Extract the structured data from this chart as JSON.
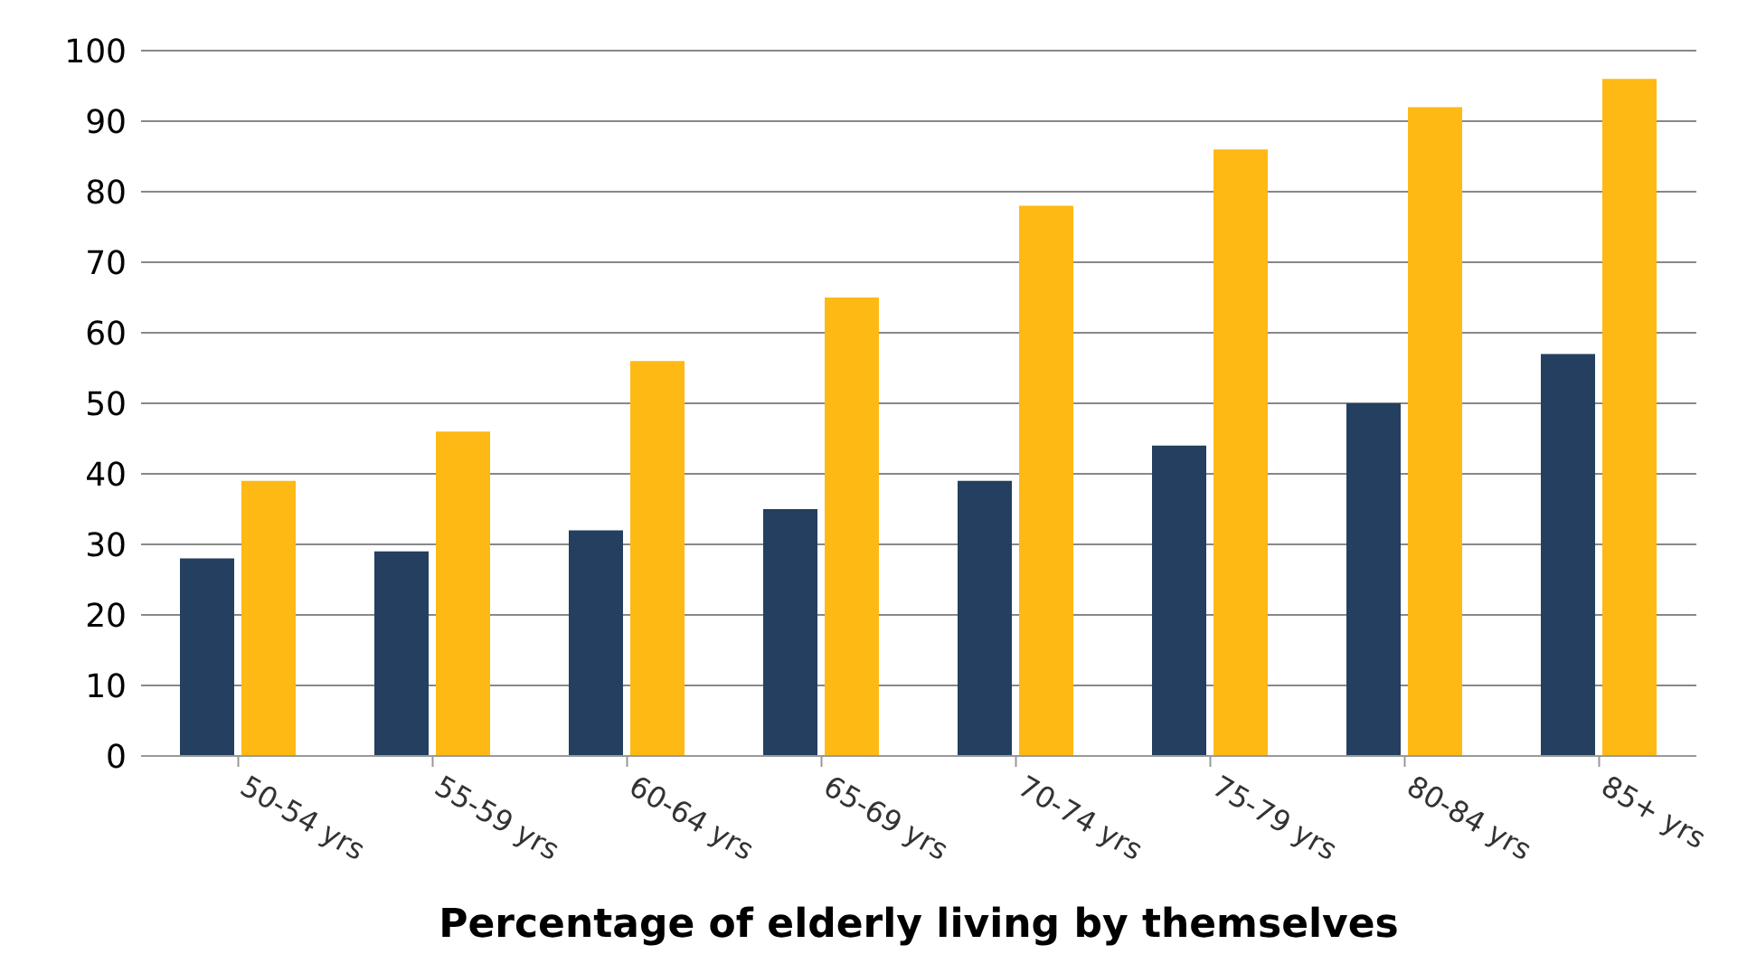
{
  "chart_data": {
    "type": "bar",
    "xlabel": "Percentage of elderly living by themselves",
    "categories": [
      "50-54 yrs",
      "55-59 yrs",
      "60-64 yrs",
      "65-69 yrs",
      "70-74 yrs",
      "75-79 yrs",
      "80-84 yrs",
      "85+ yrs"
    ],
    "series": [
      {
        "color": "#243f60",
        "values": [
          28,
          29,
          32,
          35,
          39,
          44,
          50,
          57
        ]
      },
      {
        "color": "#ffb915",
        "values": [
          39,
          46,
          56,
          65,
          78,
          86,
          92,
          96
        ]
      }
    ],
    "ylim": [
      0,
      100
    ],
    "yticks": [
      0,
      10,
      20,
      30,
      40,
      50,
      60,
      70,
      80,
      90,
      100
    ],
    "grid": "y"
  }
}
